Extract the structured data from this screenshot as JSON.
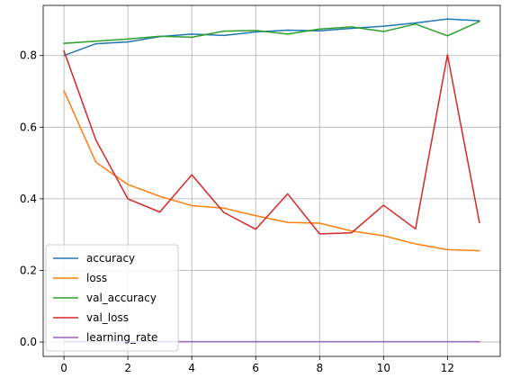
{
  "chart_data": {
    "type": "line",
    "title": "",
    "xlabel": "",
    "ylabel": "",
    "xlim": [
      -0.65,
      13.65
    ],
    "ylim": [
      -0.04,
      0.94
    ],
    "xticks": [
      0,
      2,
      4,
      6,
      8,
      10,
      12
    ],
    "yticks": [
      0.0,
      0.2,
      0.4,
      0.6,
      0.8
    ],
    "xtick_labels": [
      "0",
      "2",
      "4",
      "6",
      "8",
      "10",
      "12"
    ],
    "ytick_labels": [
      "0.0",
      "0.2",
      "0.4",
      "0.6",
      "0.8"
    ],
    "grid": true,
    "legend_position": "lower-left",
    "x": [
      0,
      1,
      2,
      3,
      4,
      5,
      6,
      7,
      8,
      9,
      10,
      11,
      12,
      13
    ],
    "series": [
      {
        "name": "accuracy",
        "color": "#1f77b4",
        "values": [
          0.8,
          0.833,
          0.838,
          0.853,
          0.86,
          0.856,
          0.866,
          0.871,
          0.869,
          0.876,
          0.882,
          0.891,
          0.902,
          0.897
        ]
      },
      {
        "name": "loss",
        "color": "#ff7f0e",
        "values": [
          0.702,
          0.502,
          0.44,
          0.407,
          0.381,
          0.374,
          0.353,
          0.334,
          0.332,
          0.31,
          0.297,
          0.274,
          0.258,
          0.255
        ]
      },
      {
        "name": "val_accuracy",
        "color": "#2ca02c",
        "values": [
          0.834,
          0.84,
          0.846,
          0.854,
          0.851,
          0.868,
          0.87,
          0.86,
          0.874,
          0.88,
          0.867,
          0.888,
          0.855,
          0.895
        ]
      },
      {
        "name": "val_loss",
        "color": "#d62728",
        "values": [
          0.813,
          0.564,
          0.4,
          0.363,
          0.467,
          0.362,
          0.315,
          0.414,
          0.302,
          0.305,
          0.382,
          0.316,
          0.802,
          0.334
        ]
      },
      {
        "name": "learning_rate",
        "color": "#9467bd",
        "values": [
          0.001,
          0.001,
          0.001,
          0.001,
          0.001,
          0.001,
          0.001,
          0.001,
          0.001,
          0.001,
          0.001,
          0.001,
          0.001,
          0.001
        ]
      }
    ]
  }
}
